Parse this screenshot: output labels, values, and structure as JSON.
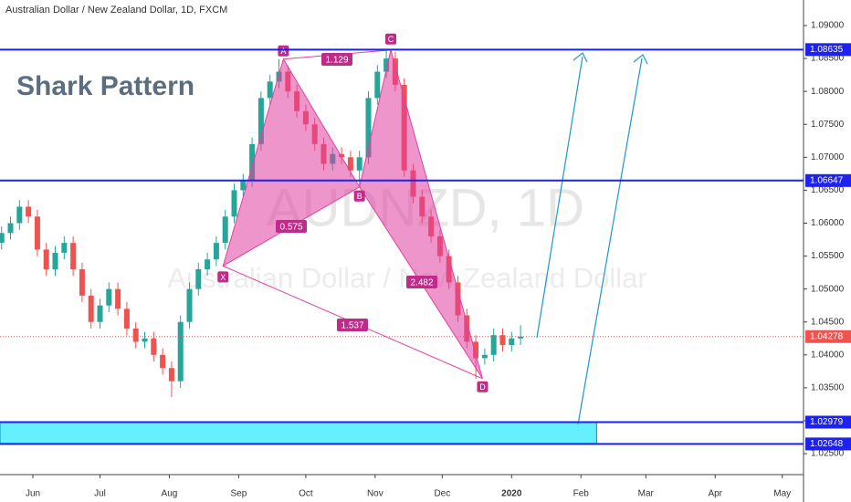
{
  "chart_data": {
    "type": "candlestick",
    "title": "Australian Dollar / New Zealand Dollar, 1D, FXCM",
    "annotation": "Shark Pattern",
    "watermark": "AUDNZD, 1D",
    "watermark_sub": "Australian Dollar / New Zealand Dollar",
    "up_color": "#26a69a",
    "down_color": "#ef5350",
    "x": [
      -14,
      -10,
      -6,
      -2,
      2,
      6,
      10,
      14,
      18,
      22,
      26,
      30,
      34,
      38,
      42,
      46,
      50,
      54,
      58,
      62,
      66,
      70,
      74,
      78,
      82,
      86,
      90,
      94,
      98,
      102,
      106,
      110,
      114,
      118,
      122,
      126,
      130,
      134,
      138,
      142,
      146,
      150,
      154,
      158,
      162,
      166,
      170,
      174,
      178,
      182,
      186,
      190,
      194,
      198,
      202,
      206,
      210,
      214,
      218
    ],
    "open": [
      1.057,
      1.0585,
      1.06,
      1.0625,
      1.061,
      1.056,
      1.053,
      1.0555,
      1.057,
      1.053,
      1.049,
      1.045,
      1.0475,
      1.05,
      1.047,
      1.044,
      1.042,
      1.0425,
      1.04,
      1.038,
      1.036,
      1.045,
      1.05,
      1.053,
      1.0545,
      1.057,
      1.061,
      1.065,
      1.0665,
      1.072,
      1.079,
      1.0815,
      1.083,
      1.08,
      1.077,
      1.075,
      1.072,
      1.069,
      1.0705,
      1.07,
      1.068,
      1.07,
      1.079,
      1.083,
      1.085,
      1.081,
      1.068,
      1.064,
      1.061,
      1.058,
      1.055,
      1.051,
      1.046,
      1.042,
      1.0395,
      1.04,
      1.043,
      1.0415,
      1.0425
    ],
    "high": [
      1.0595,
      1.061,
      1.0635,
      1.0635,
      1.062,
      1.057,
      1.0565,
      1.058,
      1.058,
      1.054,
      1.05,
      1.0485,
      1.051,
      1.051,
      1.048,
      1.045,
      1.0435,
      1.0435,
      1.041,
      1.039,
      1.046,
      1.051,
      1.054,
      1.0555,
      1.058,
      1.062,
      1.066,
      1.0675,
      1.073,
      1.08,
      1.0825,
      1.0849,
      1.084,
      1.081,
      1.078,
      1.076,
      1.073,
      1.0715,
      1.0715,
      1.071,
      1.071,
      1.08,
      1.084,
      1.0863,
      1.086,
      1.082,
      1.069,
      1.065,
      1.062,
      1.059,
      1.056,
      1.052,
      1.047,
      1.043,
      1.041,
      1.044,
      1.044,
      1.0435,
      1.0445
    ],
    "low": [
      1.056,
      1.0575,
      1.059,
      1.06,
      1.055,
      1.052,
      1.052,
      1.0545,
      1.052,
      1.048,
      1.044,
      1.044,
      1.0465,
      1.046,
      1.043,
      1.041,
      1.041,
      1.039,
      1.037,
      1.0336,
      1.035,
      1.044,
      1.049,
      1.052,
      1.0535,
      1.056,
      1.06,
      1.064,
      1.0655,
      1.071,
      1.078,
      1.0805,
      1.079,
      1.076,
      1.074,
      1.071,
      1.068,
      1.068,
      1.069,
      1.067,
      1.0655,
      1.069,
      1.078,
      1.082,
      1.08,
      1.067,
      1.063,
      1.06,
      1.057,
      1.054,
      1.05,
      1.045,
      1.041,
      1.0364,
      1.0385,
      1.039,
      1.0405,
      1.0405,
      1.0415
    ],
    "close": [
      1.0585,
      1.06,
      1.0625,
      1.061,
      1.056,
      1.053,
      1.0555,
      1.057,
      1.053,
      1.049,
      1.045,
      1.0475,
      1.05,
      1.047,
      1.044,
      1.042,
      1.0425,
      1.04,
      1.038,
      1.036,
      1.045,
      1.05,
      1.053,
      1.0545,
      1.057,
      1.061,
      1.065,
      1.0665,
      1.072,
      1.079,
      1.0815,
      1.083,
      1.08,
      1.077,
      1.075,
      1.072,
      1.069,
      1.0705,
      1.07,
      1.068,
      1.07,
      1.079,
      1.083,
      1.085,
      1.081,
      1.068,
      1.064,
      1.061,
      1.058,
      1.055,
      1.051,
      1.046,
      1.042,
      1.0395,
      1.04,
      1.043,
      1.0415,
      1.0425,
      1.04278
    ],
    "last_price": 1.04278,
    "last_price_color": "#ef5350",
    "xlim": [
      -14.7,
      344.5
    ],
    "xticks": [
      {
        "value": 0,
        "label": "Jun"
      },
      {
        "value": 30,
        "label": "Jul"
      },
      {
        "value": 61,
        "label": "Aug"
      },
      {
        "value": 92,
        "label": "Sep"
      },
      {
        "value": 122,
        "label": "Oct"
      },
      {
        "value": 153,
        "label": "Nov"
      },
      {
        "value": 183,
        "label": "Dec"
      },
      {
        "value": 214,
        "label": "2020"
      },
      {
        "value": 245,
        "label": "Feb"
      },
      {
        "value": 274,
        "label": "Mar"
      },
      {
        "value": 305,
        "label": "Apr"
      },
      {
        "value": 335,
        "label": "May"
      }
    ],
    "ylim": [
      1.02182,
      1.09388
    ],
    "yticks": [
      {
        "value": 1.025,
        "label": "1.02500"
      },
      {
        "value": 1.03,
        "label": "1.03000"
      },
      {
        "value": 1.035,
        "label": "1.03500"
      },
      {
        "value": 1.04,
        "label": "1.04000"
      },
      {
        "value": 1.045,
        "label": "1.04500"
      },
      {
        "value": 1.05,
        "label": "1.05000"
      },
      {
        "value": 1.055,
        "label": "1.05500"
      },
      {
        "value": 1.06,
        "label": "1.06000"
      },
      {
        "value": 1.065,
        "label": "1.06500"
      },
      {
        "value": 1.07,
        "label": "1.07000"
      },
      {
        "value": 1.075,
        "label": "1.07500"
      },
      {
        "value": 1.08,
        "label": "1.08000"
      },
      {
        "value": 1.085,
        "label": "1.08500"
      },
      {
        "value": 1.09,
        "label": "1.09000"
      }
    ],
    "hlines": [
      1.08635,
      1.06647,
      1.02979,
      1.02648
    ],
    "hline_color": "#1e22f0",
    "zone": {
      "x_end": 252,
      "color": "#66f0ff"
    },
    "pattern": {
      "color": "#e040a0",
      "points": [
        {
          "label": "X",
          "x": 85,
          "y": 1.0535
        },
        {
          "label": "A",
          "x": 112,
          "y": 1.0849
        },
        {
          "label": "B",
          "x": 146,
          "y": 1.0655
        },
        {
          "label": "C",
          "x": 160,
          "y": 1.0863
        },
        {
          "label": "D",
          "x": 201,
          "y": 1.0364
        }
      ],
      "ratios": [
        "1.129",
        "0.575",
        "2.482",
        "1.537"
      ]
    }
  }
}
